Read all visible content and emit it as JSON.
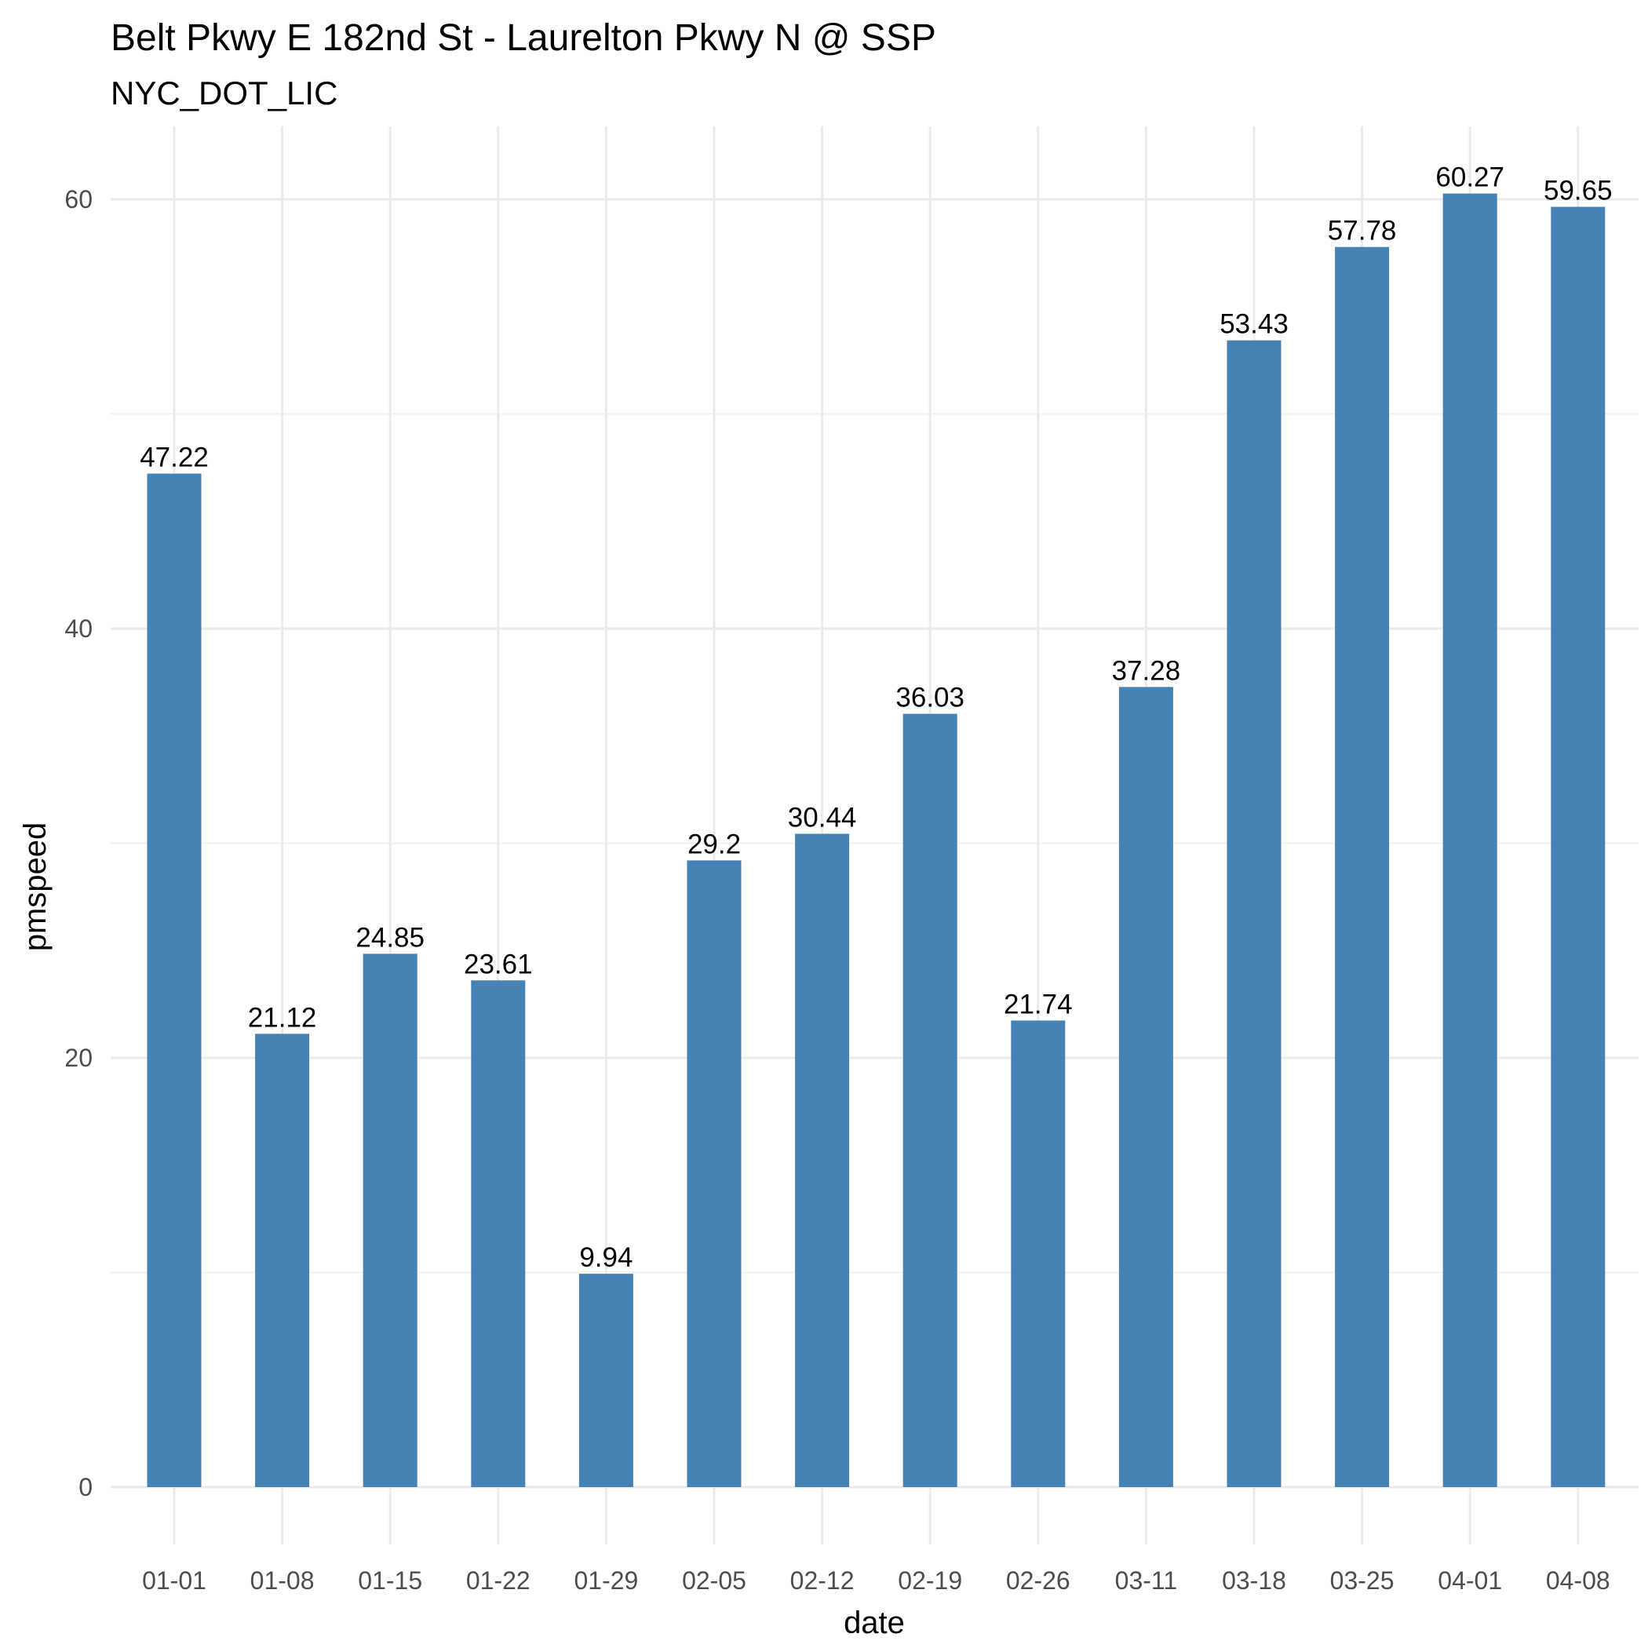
{
  "chart_data": {
    "type": "bar",
    "title": "Belt Pkwy E 182nd St - Laurelton Pkwy N @ SSP",
    "subtitle": "NYC_DOT_LIC",
    "xlabel": "date",
    "ylabel": "pmspeed",
    "categories": [
      "01-01",
      "01-08",
      "01-15",
      "01-22",
      "01-29",
      "02-05",
      "02-12",
      "02-19",
      "02-26",
      "03-11",
      "03-18",
      "03-25",
      "04-01",
      "04-08"
    ],
    "values": [
      47.22,
      21.12,
      24.85,
      23.61,
      9.94,
      29.2,
      30.44,
      36.03,
      21.74,
      37.28,
      53.43,
      57.78,
      60.27,
      59.65
    ],
    "data_labels": [
      "47.22",
      "21.12",
      "24.85",
      "23.61",
      "9.94",
      "29.2",
      "30.44",
      "36.03",
      "21.74",
      "37.28",
      "53.43",
      "57.78",
      "60.27",
      "59.65"
    ],
    "ylim": [
      0,
      60
    ],
    "yticks": [
      0,
      20,
      40,
      60
    ],
    "ytick_labels": [
      "0",
      "20",
      "40",
      "60"
    ],
    "grid": true,
    "legend": "none",
    "bar_color": "#4682b4"
  }
}
